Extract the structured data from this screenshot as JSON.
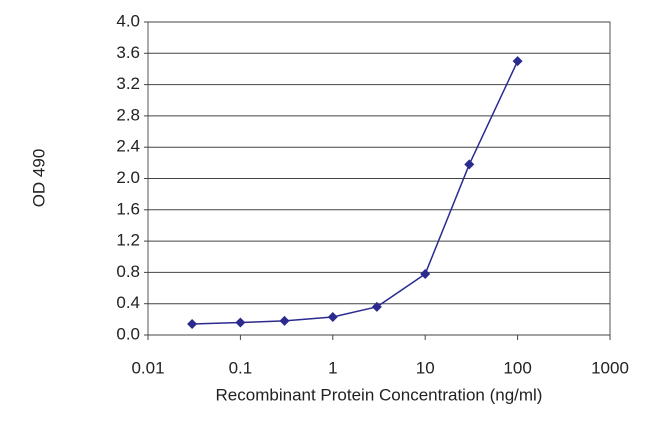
{
  "chart_data": {
    "type": "line",
    "xlabel": "Recombinant Protein Concentration (ng/ml)",
    "ylabel": "OD 490",
    "x": [
      0.03,
      0.1,
      0.3,
      1,
      3,
      10,
      30,
      100
    ],
    "series": [
      {
        "color": "#2b2b8f",
        "values": [
          0.14,
          0.16,
          0.18,
          0.23,
          0.36,
          0.78,
          2.18,
          3.5
        ]
      }
    ],
    "xscale": "log",
    "xlim": [
      0.01,
      1000
    ],
    "xticks": [
      0.01,
      0.1,
      1,
      10,
      100,
      1000
    ],
    "ylim": [
      0,
      4
    ],
    "yticks": [
      {
        "value": 0,
        "label": "0.0"
      },
      0.4,
      0.8,
      1.2,
      1.6,
      {
        "value": 2,
        "label": "2.0"
      },
      2.4,
      2.8,
      3.2,
      3.6,
      {
        "value": 4,
        "label": "4.0"
      }
    ],
    "grid": true
  }
}
